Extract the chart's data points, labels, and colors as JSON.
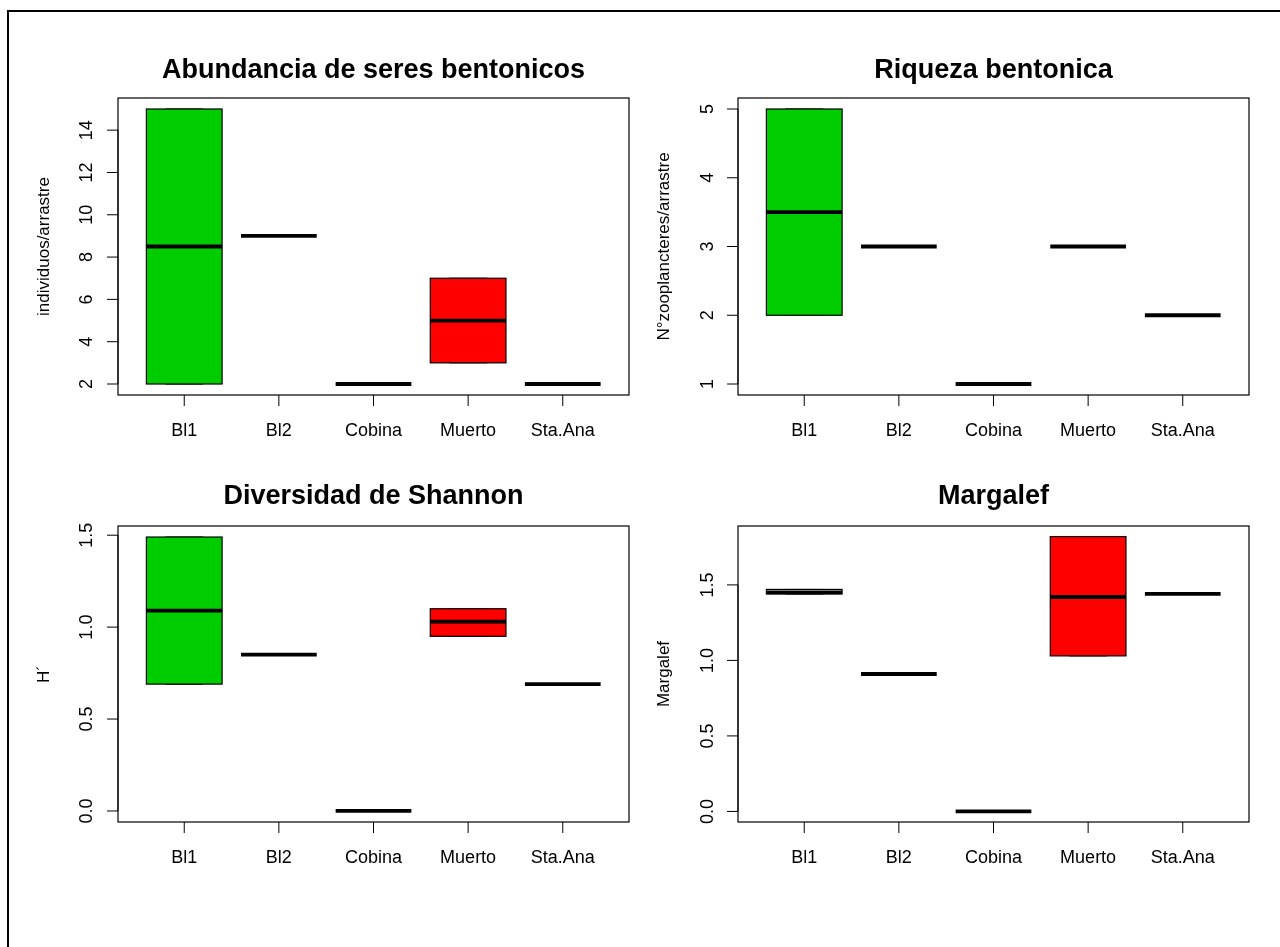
{
  "chart_data": [
    {
      "type": "box",
      "title": "Abundancia de seres bentonicos",
      "ylabel": "individuos/arrastre",
      "categories": [
        "Bl1",
        "Bl2",
        "Cobina",
        "Muerto",
        "Sta.Ana"
      ],
      "boxes": [
        {
          "low": 2,
          "q1": 2,
          "median": 8.5,
          "q3": 15,
          "high": 15
        },
        {
          "low": 9,
          "q1": 9,
          "median": 9,
          "q3": 9,
          "high": 9
        },
        {
          "low": 2,
          "q1": 2,
          "median": 2,
          "q3": 2,
          "high": 2
        },
        {
          "low": 3,
          "q1": 3,
          "median": 5,
          "q3": 7,
          "high": 7
        },
        {
          "low": 2,
          "q1": 2,
          "median": 2,
          "q3": 2,
          "high": 2
        }
      ],
      "colors": [
        "#00cd00",
        null,
        null,
        "#ff0000",
        null
      ],
      "ylim": [
        1.48,
        15.52
      ],
      "yticks": [
        2,
        4,
        6,
        8,
        10,
        12,
        14
      ]
    },
    {
      "type": "box",
      "title": "Riqueza bentonica",
      "ylabel": "N°zooplancteres/arrastre",
      "categories": [
        "Bl1",
        "Bl2",
        "Cobina",
        "Muerto",
        "Sta.Ana"
      ],
      "boxes": [
        {
          "low": 2,
          "q1": 2,
          "median": 3.5,
          "q3": 5,
          "high": 5
        },
        {
          "low": 3,
          "q1": 3,
          "median": 3,
          "q3": 3,
          "high": 3
        },
        {
          "low": 1,
          "q1": 1,
          "median": 1,
          "q3": 1,
          "high": 1
        },
        {
          "low": 3,
          "q1": 3,
          "median": 3,
          "q3": 3,
          "high": 3
        },
        {
          "low": 2,
          "q1": 2,
          "median": 2,
          "q3": 2,
          "high": 2
        }
      ],
      "colors": [
        "#00cd00",
        null,
        null,
        null,
        null
      ],
      "ylim": [
        0.84,
        5.16
      ],
      "yticks": [
        1,
        2,
        3,
        4,
        5
      ]
    },
    {
      "type": "box",
      "title": "Diversidad de Shannon",
      "ylabel": "H´",
      "categories": [
        "Bl1",
        "Bl2",
        "Cobina",
        "Muerto",
        "Sta.Ana"
      ],
      "boxes": [
        {
          "low": 0.69,
          "q1": 0.69,
          "median": 1.09,
          "q3": 1.49,
          "high": 1.49
        },
        {
          "low": 0.85,
          "q1": 0.85,
          "median": 0.85,
          "q3": 0.85,
          "high": 0.85
        },
        {
          "low": 0,
          "q1": 0,
          "median": 0,
          "q3": 0,
          "high": 0
        },
        {
          "low": 0.95,
          "q1": 0.95,
          "median": 1.03,
          "q3": 1.1,
          "high": 1.1
        },
        {
          "low": 0.69,
          "q1": 0.69,
          "median": 0.69,
          "q3": 0.69,
          "high": 0.69
        }
      ],
      "colors": [
        "#00cd00",
        null,
        null,
        "#ff0000",
        null
      ],
      "ylim": [
        -0.06,
        1.55
      ],
      "yticks": [
        {
          "value": 0,
          "label": "0.0"
        },
        {
          "value": 0.5,
          "label": "0.5"
        },
        {
          "value": 1,
          "label": "1.0"
        },
        {
          "value": 1.5,
          "label": "1.5"
        }
      ]
    },
    {
      "type": "box",
      "title": "Margalef",
      "ylabel": "Margalef",
      "categories": [
        "Bl1",
        "Bl2",
        "Cobina",
        "Muerto",
        "Sta.Ana"
      ],
      "boxes": [
        {
          "low": 1.44,
          "q1": 1.44,
          "median": 1.45,
          "q3": 1.47,
          "high": 1.47
        },
        {
          "low": 0.91,
          "q1": 0.91,
          "median": 0.91,
          "q3": 0.91,
          "high": 0.91
        },
        {
          "low": 0,
          "q1": 0,
          "median": 0,
          "q3": 0,
          "high": 0
        },
        {
          "low": 1.03,
          "q1": 1.03,
          "median": 1.42,
          "q3": 1.82,
          "high": 1.82
        },
        {
          "low": 1.44,
          "q1": 1.44,
          "median": 1.44,
          "q3": 1.44,
          "high": 1.44
        }
      ],
      "colors": [
        null,
        null,
        null,
        "#ff0000",
        null
      ],
      "ylim": [
        -0.07,
        1.89
      ],
      "yticks": [
        {
          "value": 0,
          "label": "0.0"
        },
        {
          "value": 0.5,
          "label": "0.5"
        },
        {
          "value": 1,
          "label": "1.0"
        },
        {
          "value": 1.5,
          "label": "1.5"
        }
      ]
    }
  ]
}
